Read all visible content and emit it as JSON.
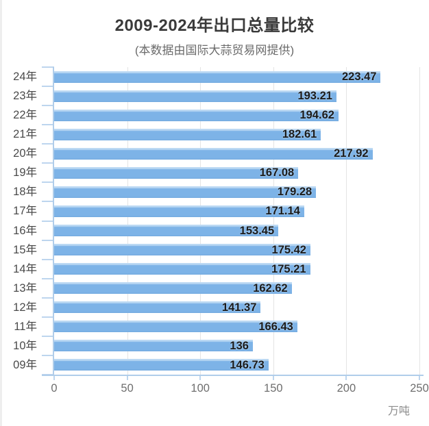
{
  "header": {
    "title": "2009-2024年出口总量比较",
    "subtitle": "(本数据由国际大蒜贸易网提供)"
  },
  "chart_data": {
    "type": "bar",
    "orientation": "horizontal",
    "title": "2009-2024年出口总量比较",
    "subtitle": "(本数据由国际大蒜贸易网提供)",
    "categories": [
      "24年",
      "23年",
      "22年",
      "21年",
      "20年",
      "19年",
      "18年",
      "17年",
      "16年",
      "15年",
      "14年",
      "13年",
      "12年",
      "11年",
      "10年",
      "09年"
    ],
    "values": [
      223.47,
      193.21,
      194.62,
      182.61,
      217.92,
      167.08,
      179.28,
      171.14,
      153.45,
      175.42,
      175.21,
      162.62,
      141.37,
      166.43,
      136,
      146.73
    ],
    "value_labels": [
      "223.47",
      "193.21",
      "194.62",
      "182.61",
      "217.92",
      "167.08",
      "179.28",
      "171.14",
      "153.45",
      "175.42",
      "175.21",
      "162.62",
      "141.37",
      "166.43",
      "136",
      "146.73"
    ],
    "xlabel": "万吨",
    "xticks": [
      0,
      50,
      100,
      150,
      200,
      250
    ],
    "xtick_labels": [
      "0",
      "50",
      "100",
      "150",
      "200",
      "250"
    ],
    "xlim": [
      0,
      250
    ],
    "grid": true,
    "legend": "none",
    "colors": {
      "bar": "#7db3e7",
      "bar_highlight": "#bcd9f3",
      "axis": "#b0cdea",
      "tick": "#bdd5ee",
      "gridline": "#e4e4e4",
      "value_label": "#1b1b1b",
      "category_label": "#4a4a4a",
      "xtick_label": "#6e6e6e",
      "unit_label": "#8c8c8c",
      "title": "#3a3a3a",
      "subtitle": "#6b6b6b"
    }
  }
}
